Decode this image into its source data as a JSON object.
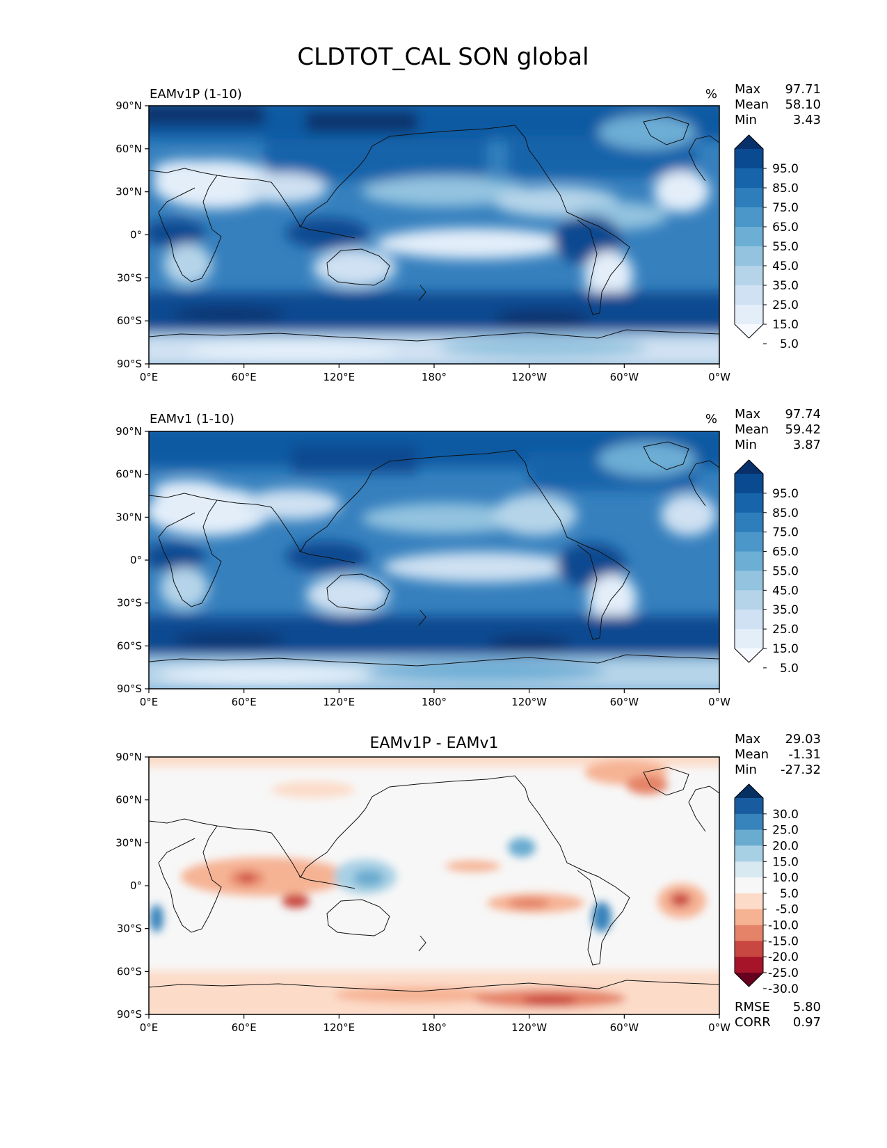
{
  "figure": {
    "title": "CLDTOT_CAL SON global"
  },
  "panels": [
    {
      "id": "test",
      "left_title": "EAMv1P (1-10)",
      "center_title": "",
      "units": "%",
      "stats": [
        {
          "label": "Max",
          "value": "97.71"
        },
        {
          "label": "Mean",
          "value": "58.10"
        },
        {
          "label": "Min",
          "value": "3.43"
        }
      ],
      "extra_stats": [],
      "colormap": "Blues",
      "colorbar_labels": [
        "95.0",
        "85.0",
        "75.0",
        "65.0",
        "55.0",
        "45.0",
        "35.0",
        "25.0",
        "15.0",
        "5.0"
      ]
    },
    {
      "id": "reference",
      "left_title": "EAMv1 (1-10)",
      "center_title": "",
      "units": "%",
      "stats": [
        {
          "label": "Max",
          "value": "97.74"
        },
        {
          "label": "Mean",
          "value": "59.42"
        },
        {
          "label": "Min",
          "value": "3.87"
        }
      ],
      "extra_stats": [],
      "colormap": "Blues",
      "colorbar_labels": [
        "95.0",
        "85.0",
        "75.0",
        "65.0",
        "55.0",
        "45.0",
        "35.0",
        "25.0",
        "15.0",
        "5.0"
      ]
    },
    {
      "id": "difference",
      "left_title": "",
      "center_title": "EAMv1P - EAMv1",
      "units": "",
      "stats": [
        {
          "label": "Max",
          "value": "29.03"
        },
        {
          "label": "Mean",
          "value": "-1.31"
        },
        {
          "label": "Min",
          "value": "-27.32"
        }
      ],
      "extra_stats": [
        {
          "label": "RMSE",
          "value": "5.80"
        },
        {
          "label": "CORR",
          "value": "0.97"
        }
      ],
      "colormap": "RdBu",
      "colorbar_labels": [
        "30.0",
        "25.0",
        "20.0",
        "15.0",
        "10.0",
        "5.0",
        "-5.0",
        "-10.0",
        "-15.0",
        "-20.0",
        "-25.0",
        "-30.0"
      ]
    }
  ],
  "axes": {
    "lat_ticks": [
      "90°N",
      "60°N",
      "30°N",
      "0°",
      "30°S",
      "60°S",
      "90°S"
    ],
    "lon_ticks": [
      "0°E",
      "60°E",
      "120°E",
      "180°",
      "120°W",
      "60°W",
      "0°W"
    ]
  },
  "colors": {
    "blues": [
      "#f7fbff",
      "#e3eef9",
      "#cfe1f2",
      "#b5d4e9",
      "#93c3df",
      "#6daed5",
      "#4b97c9",
      "#2f7ebc",
      "#1864aa",
      "#0a4a90",
      "#08306b"
    ],
    "rdbu": [
      "#67001f",
      "#a51429",
      "#c94741",
      "#e58368",
      "#f6b394",
      "#fcdcc9",
      "#f7f7f7",
      "#d8e9f1",
      "#a8d0e4",
      "#6aacd0",
      "#3783bb",
      "#185c9f",
      "#053061"
    ]
  }
}
